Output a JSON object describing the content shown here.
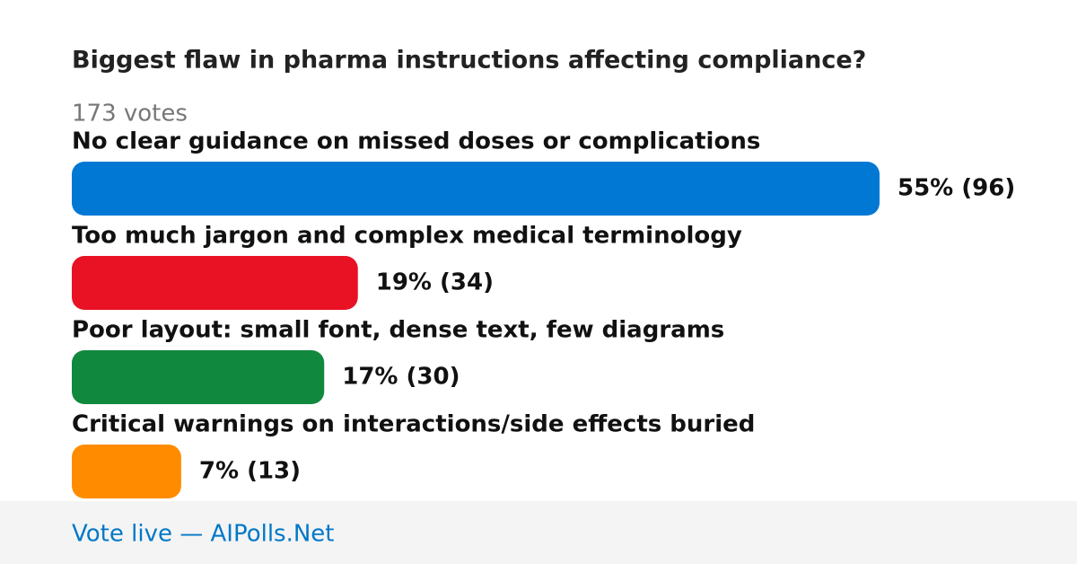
{
  "chart_data": {
    "type": "bar",
    "orientation": "horizontal",
    "title": "Biggest flaw in pharma instructions affecting compliance?",
    "subtitle": "173 votes",
    "categories": [
      "No clear guidance on missed doses or complications",
      "Too much jargon and complex medical terminology",
      "Poor layout: small font, dense text, few diagrams",
      "Critical warnings on interactions/side effects buried"
    ],
    "values": [
      96,
      34,
      30,
      13
    ],
    "value_labels": [
      "55% (96)",
      "19% (34)",
      "17% (30)",
      "7% (13)"
    ],
    "colors": [
      "#0078d4",
      "#e81224",
      "#10893e",
      "#ff8c00"
    ],
    "footer": "Vote live — AIPolls.Net"
  }
}
